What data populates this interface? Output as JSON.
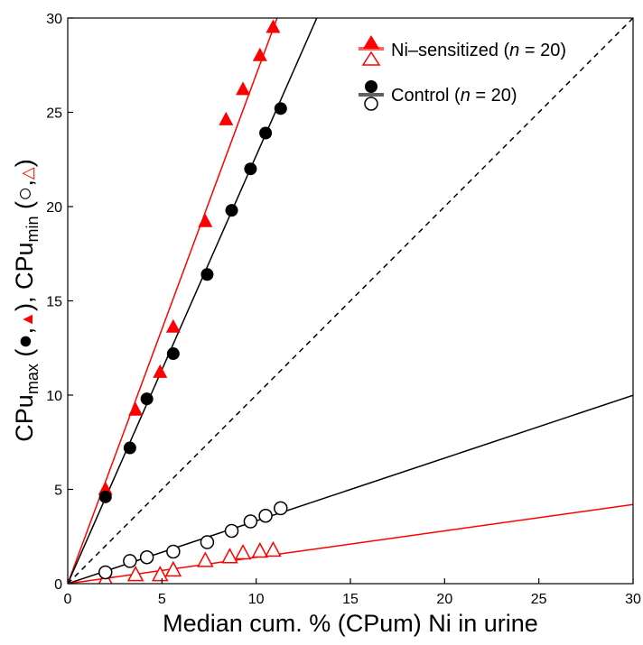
{
  "chart_data": {
    "type": "scatter",
    "xlabel": "Median cum. % (CPum) Ni in urine",
    "ylabel": {
      "parts": [
        "CPu",
        "max",
        " (",
        "●",
        ",",
        "▲",
        "), CPu",
        "min",
        " (",
        "○",
        ",",
        "△",
        ")"
      ]
    },
    "xlim": [
      0,
      30
    ],
    "ylim": [
      0,
      30
    ],
    "x_ticks": [
      0,
      5,
      10,
      15,
      20,
      25,
      30
    ],
    "y_ticks": [
      0,
      5,
      10,
      15,
      20,
      25,
      30
    ],
    "grid": false,
    "legend_position": "top-right",
    "legend": [
      {
        "label_parts": [
          "Ni–sensitized (",
          "n",
          " = 20)"
        ],
        "color": "#ff0000",
        "markers": [
          "triangle-filled",
          "triangle-open"
        ]
      },
      {
        "label_parts": [
          "Control (",
          "n",
          " = 20)"
        ],
        "color": "#000000",
        "markers": [
          "circle-filled",
          "circle-open"
        ]
      }
    ],
    "series": [
      {
        "group": "Ni–sensitized",
        "kind": "max",
        "marker": "triangle-filled",
        "color": "#ff0000",
        "x": [
          2.0,
          3.6,
          4.9,
          5.6,
          7.3,
          8.4,
          9.3,
          10.2,
          10.9
        ],
        "y": [
          5.0,
          9.2,
          11.2,
          13.6,
          19.2,
          24.6,
          26.2,
          28.0,
          29.5
        ]
      },
      {
        "group": "Ni–sensitized",
        "kind": "min",
        "marker": "triangle-open",
        "color": "#ff0000",
        "x": [
          2.0,
          3.6,
          4.9,
          5.6,
          7.3,
          8.6,
          9.3,
          10.2,
          10.9
        ],
        "y": [
          0.2,
          0.45,
          0.45,
          0.7,
          1.2,
          1.4,
          1.6,
          1.7,
          1.75
        ]
      },
      {
        "group": "Control",
        "kind": "max",
        "marker": "circle-filled",
        "color": "#000000",
        "x": [
          2.0,
          3.3,
          4.2,
          5.6,
          7.4,
          8.7,
          9.7,
          10.5,
          11.3
        ],
        "y": [
          4.6,
          7.2,
          9.8,
          12.2,
          16.4,
          19.8,
          22.0,
          23.9,
          25.2
        ]
      },
      {
        "group": "Control",
        "kind": "min",
        "marker": "circle-open",
        "color": "#000000",
        "x": [
          2.0,
          3.3,
          4.2,
          5.6,
          7.4,
          8.7,
          9.7,
          10.5,
          11.3
        ],
        "y": [
          0.6,
          1.2,
          1.4,
          1.7,
          2.2,
          2.8,
          3.3,
          3.6,
          4.0
        ]
      }
    ],
    "lines": [
      {
        "name": "identity",
        "style": "dashed",
        "color": "#000000",
        "slope": 1.0
      },
      {
        "name": "sensitized-max-fit",
        "style": "solid",
        "color": "#ff0000",
        "slope": 2.7
      },
      {
        "name": "control-max-fit",
        "style": "solid",
        "color": "#000000",
        "slope": 2.27
      },
      {
        "name": "control-min-fit",
        "style": "solid",
        "color": "#000000",
        "slope": 0.333
      },
      {
        "name": "sensitized-min-fit",
        "style": "solid",
        "color": "#ff0000",
        "slope": 0.14
      }
    ]
  }
}
